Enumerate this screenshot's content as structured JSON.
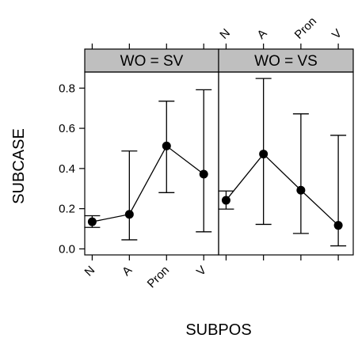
{
  "chart_data": {
    "type": "line",
    "xlabel": "SUBPOS",
    "ylabel": "SUBCASE",
    "categories": [
      "N",
      "A",
      "Pron",
      "V"
    ],
    "ylim": [
      -0.03,
      0.88
    ],
    "y_ticks": [
      "0.0",
      "0.2",
      "0.4",
      "0.6",
      "0.8"
    ],
    "panels": [
      {
        "strip": "WO = SV",
        "values": [
          0.135,
          0.172,
          0.512,
          0.372
        ],
        "lower": [
          0.107,
          0.045,
          0.28,
          0.085
        ],
        "upper": [
          0.165,
          0.487,
          0.735,
          0.792
        ]
      },
      {
        "strip": "WO = VS",
        "values": [
          0.242,
          0.472,
          0.292,
          0.117
        ],
        "lower": [
          0.198,
          0.122,
          0.077,
          0.015
        ],
        "upper": [
          0.288,
          0.848,
          0.672,
          0.565
        ]
      }
    ],
    "colors": {
      "strip_fill": "#bfbfbf",
      "ink": "#000000"
    }
  }
}
